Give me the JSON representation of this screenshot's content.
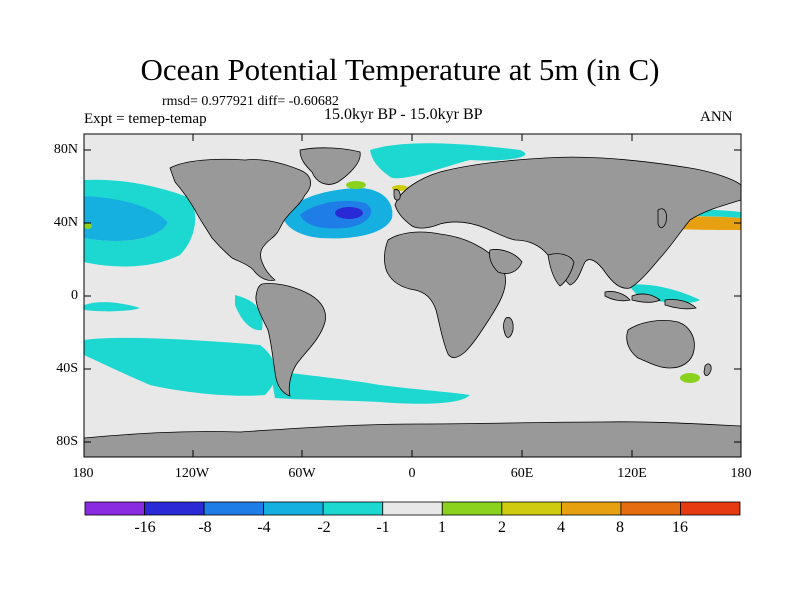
{
  "title": "Ocean Potential Temperature at 5m (in C)",
  "stats": "rmsd= 0.977921 diff= -0.60682",
  "experiment": "Expt = temep-temap",
  "period": "15.0kyr BP - 15.0kyr BP",
  "season": "ANN",
  "lat_labels": [
    "80N",
    "40N",
    "0",
    "40S",
    "80S"
  ],
  "lon_labels": [
    "180",
    "120W",
    "60W",
    "0",
    "60E",
    "120E",
    "180"
  ],
  "colorbar": {
    "tick_labels": [
      "-16",
      "-8",
      "-4",
      "-2",
      "-1",
      "1",
      "2",
      "4",
      "8",
      "16"
    ],
    "colors": [
      "#8a2be2",
      "#2929d6",
      "#1e7de6",
      "#15b0e0",
      "#1cd8d0",
      "#e8e8e8",
      "#8ad21e",
      "#cfcc10",
      "#e6a010",
      "#e66c10",
      "#e63a10"
    ]
  },
  "map_colors": {
    "ocean_neutral": "#e8e8e8",
    "land": "#999999"
  }
}
